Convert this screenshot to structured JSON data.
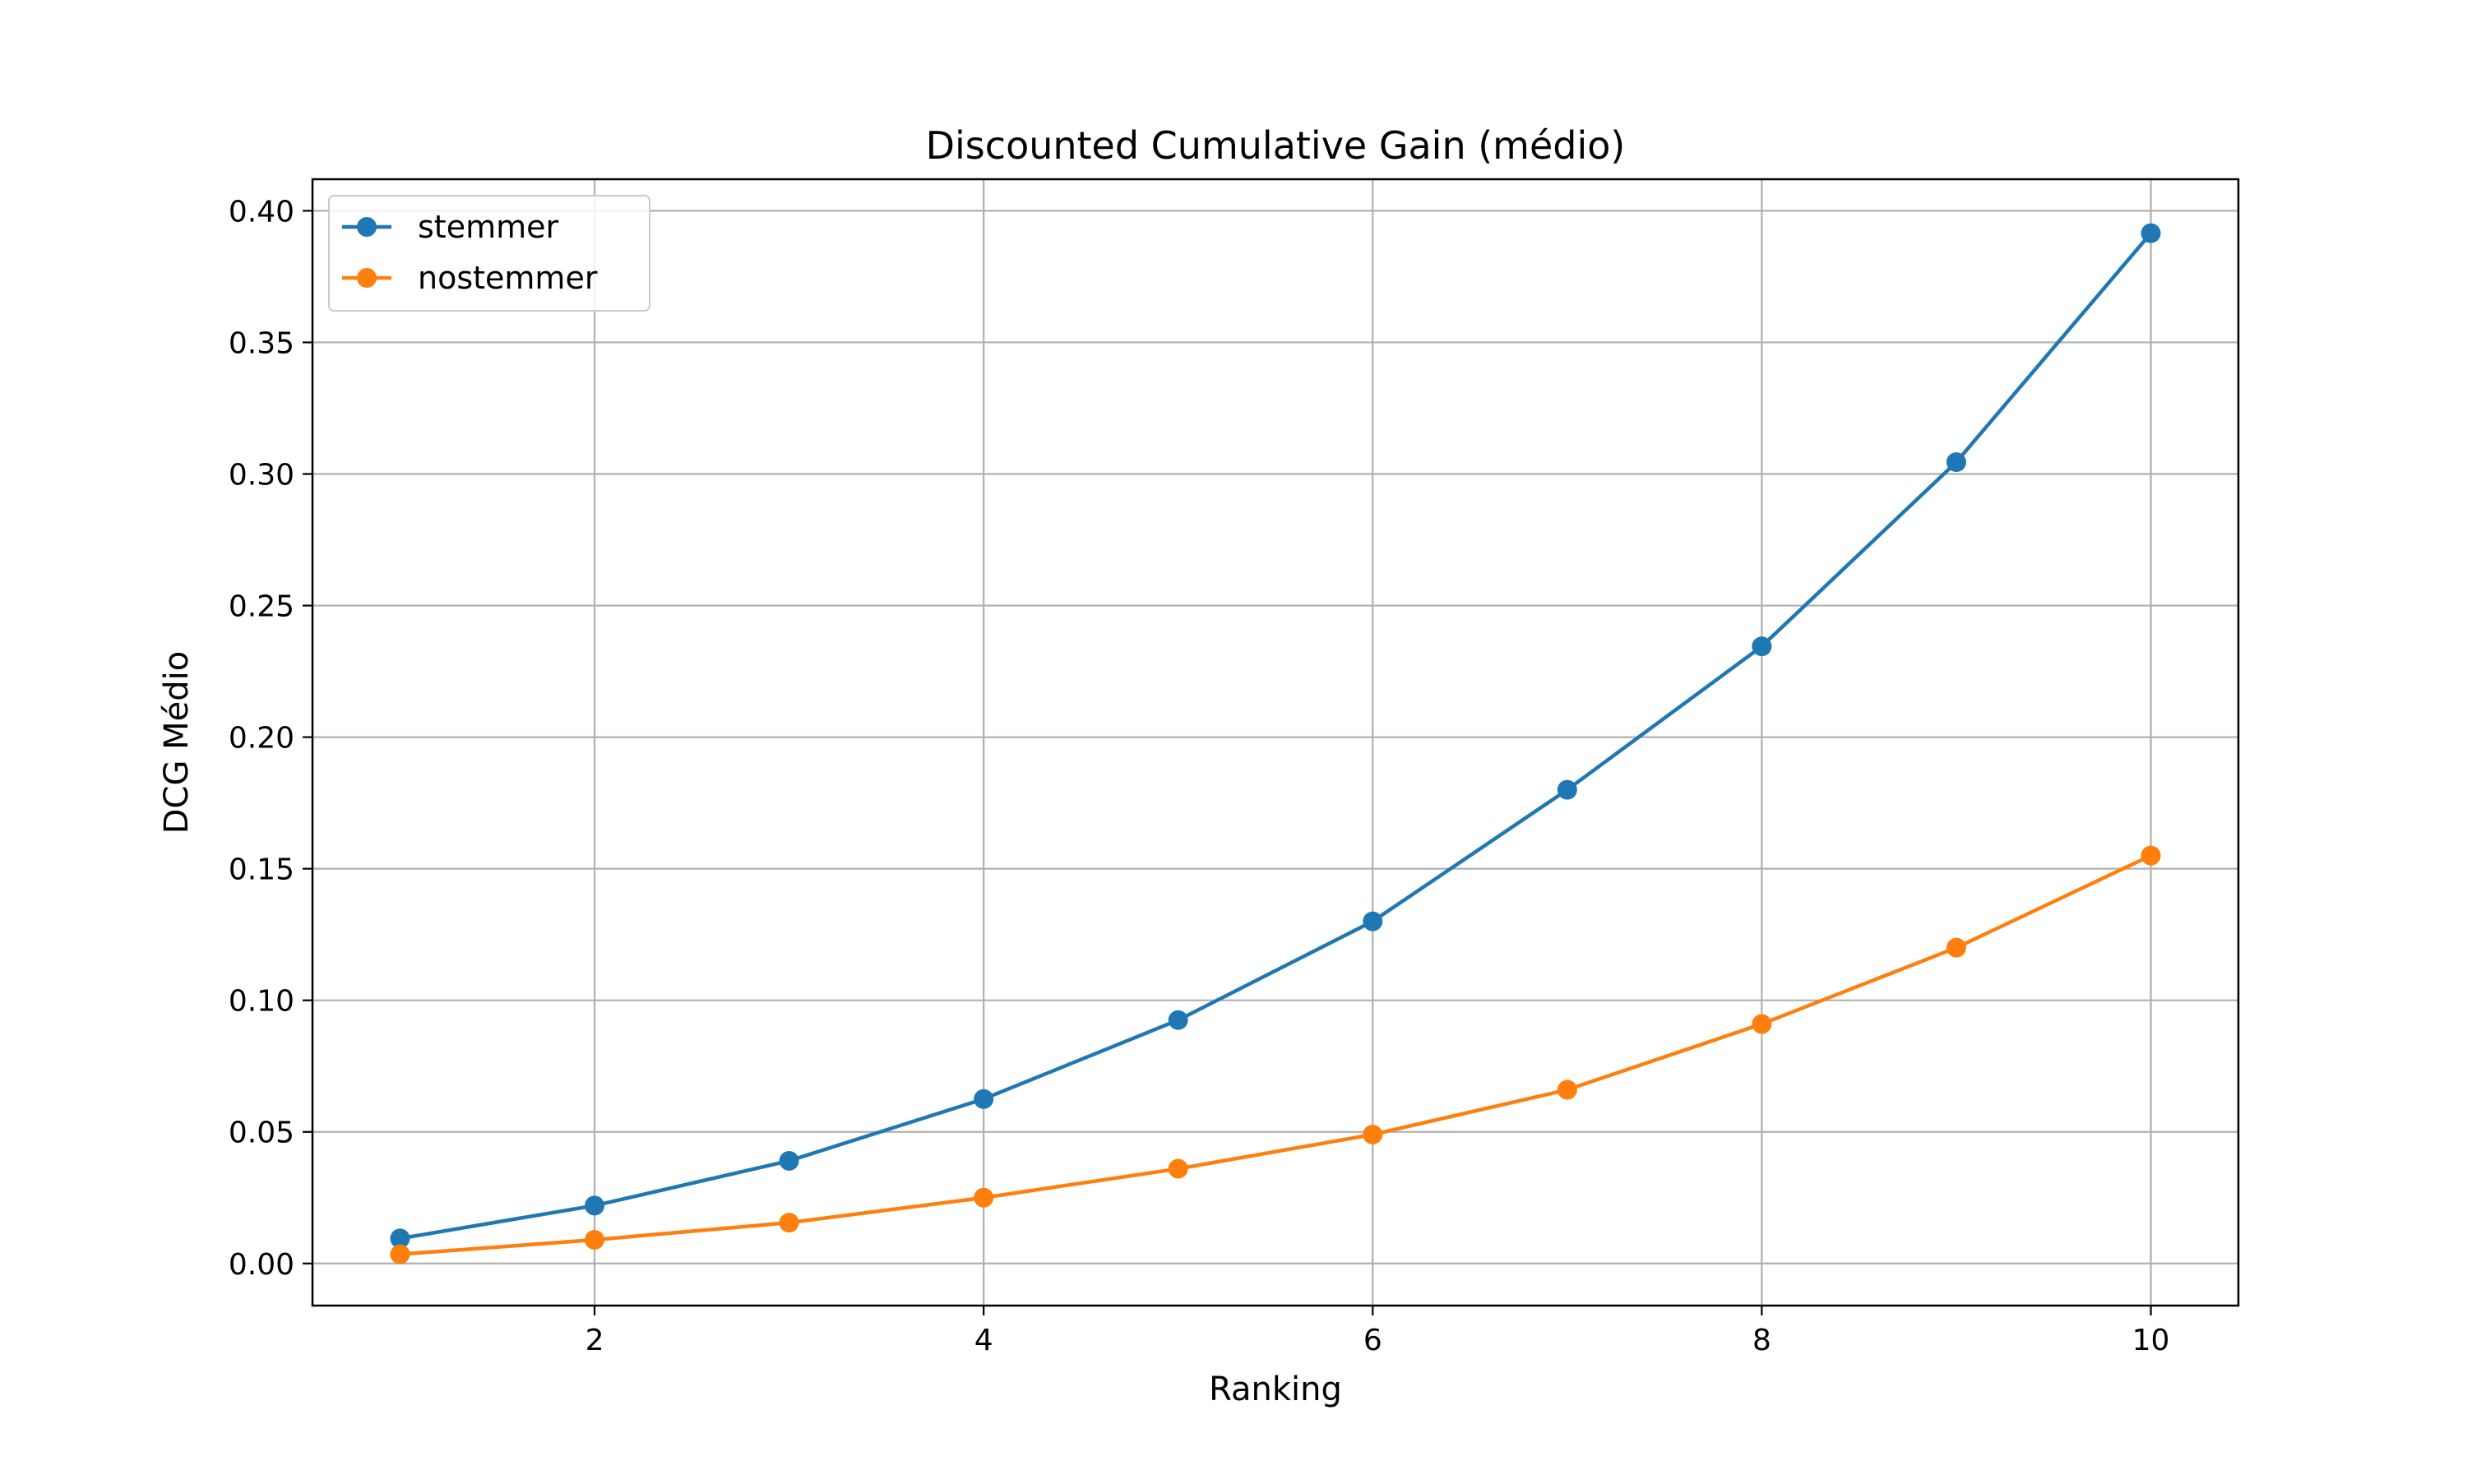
{
  "chart_data": {
    "type": "line",
    "title": "Discounted Cumulative Gain (médio)",
    "xlabel": "Ranking",
    "ylabel": "DCG Médio",
    "x": [
      1,
      2,
      3,
      4,
      5,
      6,
      7,
      8,
      9,
      10
    ],
    "xlim": [
      0.55,
      10.45
    ],
    "ylim": [
      -0.016,
      0.412
    ],
    "xticks": [
      2,
      4,
      6,
      8,
      10
    ],
    "xtick_labels": [
      "2",
      "4",
      "6",
      "8",
      "10"
    ],
    "yticks": [
      0.0,
      0.05,
      0.1,
      0.15,
      0.2,
      0.25,
      0.3,
      0.35,
      0.4
    ],
    "ytick_labels": [
      "0.00",
      "0.05",
      "0.10",
      "0.15",
      "0.20",
      "0.25",
      "0.30",
      "0.35",
      "0.40"
    ],
    "grid": true,
    "legend_position": "top-left",
    "series": [
      {
        "name": "stemmer",
        "color": "#1f77b4",
        "marker": "circle",
        "values": [
          0.0095,
          0.022,
          0.039,
          0.0625,
          0.0925,
          0.13,
          0.18,
          0.2345,
          0.3045,
          0.3915
        ]
      },
      {
        "name": "nostemmer",
        "color": "#ff7f0e",
        "marker": "circle",
        "values": [
          0.0035,
          0.009,
          0.0155,
          0.025,
          0.036,
          0.049,
          0.066,
          0.091,
          0.12,
          0.155
        ]
      }
    ]
  }
}
